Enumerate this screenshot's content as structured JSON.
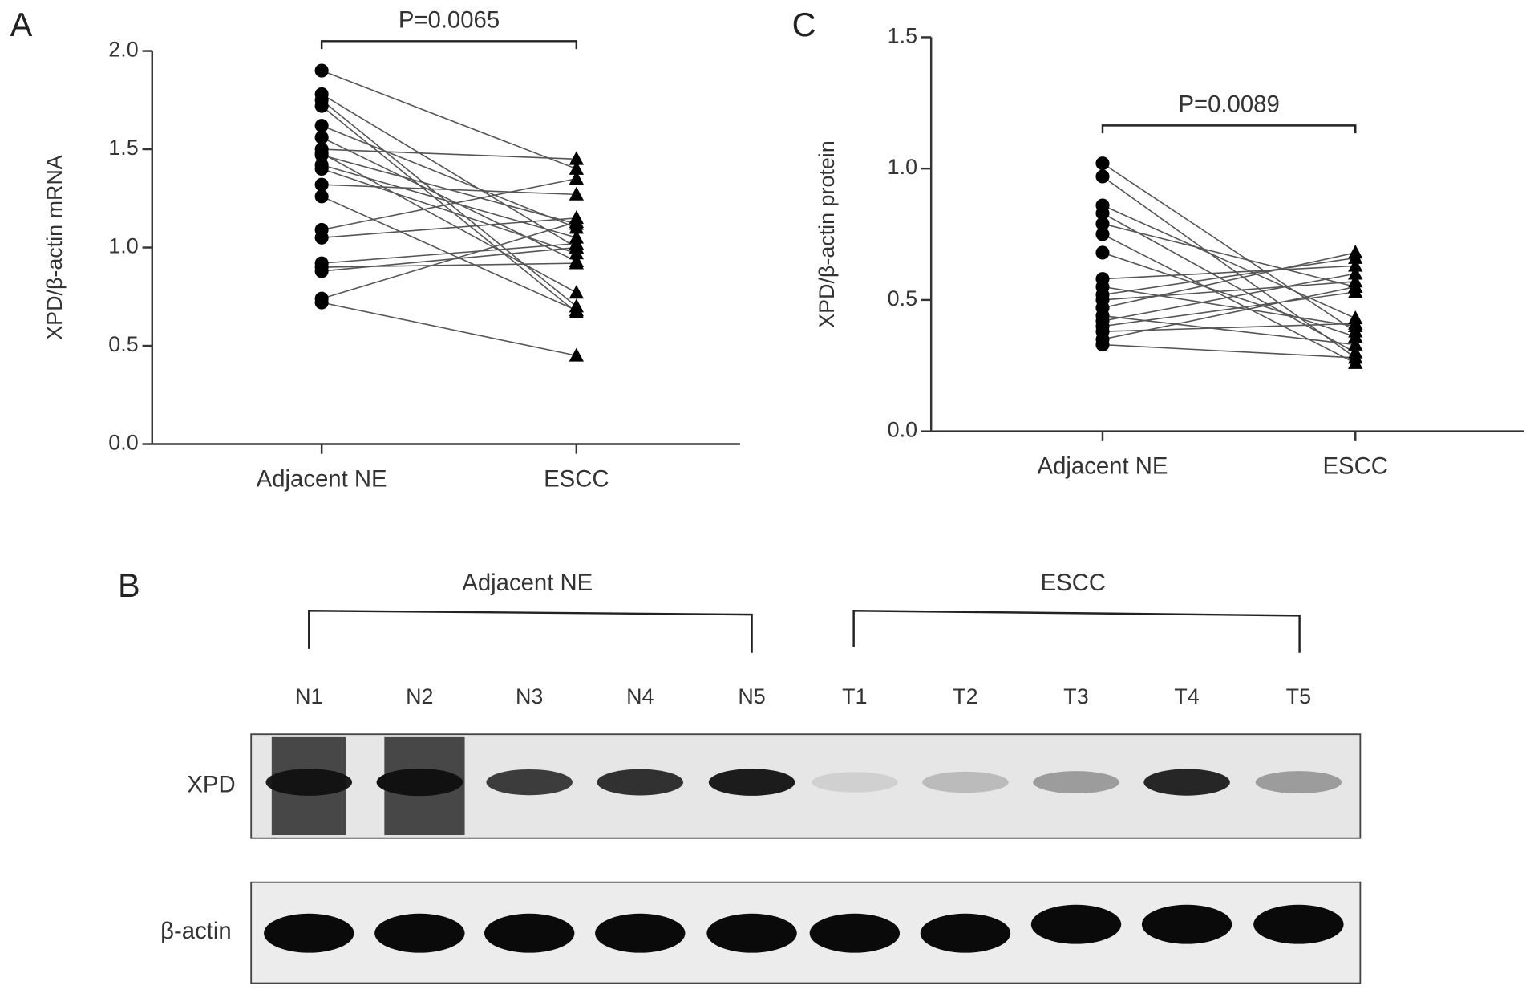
{
  "chart_data": [
    {
      "type": "paired",
      "label": "A",
      "ylabel": "XPD/β-actin mRNA",
      "annotation": "P=0.0065",
      "categories": [
        "Adjacent NE",
        "ESCC"
      ],
      "values": [
        [
          1.9,
          1.4
        ],
        [
          1.78,
          1.0
        ],
        [
          1.75,
          0.7
        ],
        [
          1.72,
          0.67
        ],
        [
          1.62,
          1.1
        ],
        [
          1.56,
          0.93
        ],
        [
          1.5,
          1.45
        ],
        [
          1.48,
          0.77
        ],
        [
          1.47,
          1.12
        ],
        [
          1.42,
          1.05
        ],
        [
          1.4,
          0.97
        ],
        [
          1.32,
          1.27
        ],
        [
          1.26,
          0.68
        ],
        [
          1.09,
          1.35
        ],
        [
          1.05,
          1.15
        ],
        [
          0.92,
          1.02
        ],
        [
          0.88,
          1.0
        ],
        [
          0.9,
          0.92
        ],
        [
          0.74,
          1.13
        ],
        [
          0.72,
          0.45
        ]
      ],
      "color": "#000000",
      "ylim": [
        0,
        2
      ],
      "yticks": [
        {
          "value": 0,
          "label": "0.0"
        },
        0.5,
        {
          "value": 1,
          "label": "1.0"
        },
        1.5,
        {
          "value": 2,
          "label": "2.0"
        }
      ]
    },
    {
      "type": "paired",
      "label": "C",
      "ylabel": "XPD/β-actin protein",
      "annotation": "P=0.0089",
      "categories": [
        "Adjacent NE",
        "ESCC"
      ],
      "values": [
        [
          1.02,
          0.38
        ],
        [
          0.97,
          0.28
        ],
        [
          0.86,
          0.43
        ],
        [
          0.83,
          0.3
        ],
        [
          0.79,
          0.55
        ],
        [
          0.75,
          0.26
        ],
        [
          0.68,
          0.36
        ],
        [
          0.58,
          0.63
        ],
        [
          0.55,
          0.4
        ],
        [
          0.52,
          0.66
        ],
        [
          0.5,
          0.57
        ],
        [
          0.47,
          0.68
        ],
        [
          0.44,
          0.33
        ],
        [
          0.42,
          0.6
        ],
        [
          0.4,
          0.53
        ],
        [
          0.38,
          0.41
        ],
        [
          0.35,
          0.55
        ],
        [
          0.33,
          0.28
        ]
      ],
      "color": "#000000",
      "ylim": [
        0,
        1.5
      ],
      "yticks": [
        {
          "value": 0,
          "label": "0.0"
        },
        0.5,
        {
          "value": 1,
          "label": "1.0"
        },
        1.5
      ]
    }
  ],
  "blot": {
    "label": "B",
    "groups": [
      "Adjacent NE",
      "ESCC"
    ],
    "lanes": [
      "N1",
      "N2",
      "N3",
      "N4",
      "N5",
      "T1",
      "T2",
      "T3",
      "T4",
      "T5"
    ],
    "rows": [
      "XPD",
      "β-actin"
    ]
  }
}
